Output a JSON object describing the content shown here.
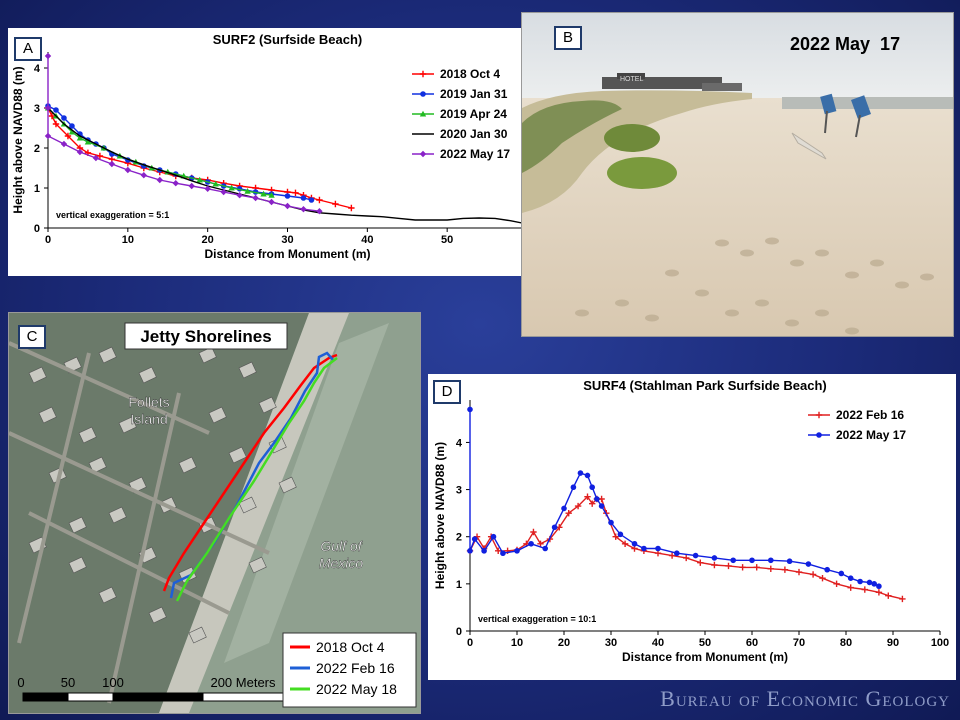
{
  "footer": "Bureau of Economic Geology",
  "panels": {
    "a": {
      "letter": "A"
    },
    "b": {
      "letter": "B",
      "date": "2022 May  17",
      "hotel_sign": "HOTEL"
    },
    "c": {
      "letter": "C",
      "title": "Jetty Shorelines",
      "place": "Follets\nIsland",
      "water": "Gulf of\nMexico",
      "legend": [
        "2018 Oct 4",
        "2022 Feb 16",
        "2022 May 18"
      ],
      "scale_labels": [
        "0",
        "50",
        "100",
        "200 Meters"
      ],
      "colors": {
        "2018 Oct 4": "#ff0000",
        "2022 Feb 16": "#1e5fd6",
        "2022 May 18": "#44dd22"
      }
    },
    "d": {
      "letter": "D"
    }
  },
  "chart_data": [
    {
      "id": "A",
      "type": "line",
      "title": "SURF2 (Surfside Beach)",
      "xlabel": "Distance from Monument (m)",
      "ylabel": "Height above NAVD88 (m)",
      "annotation": "vertical exaggeration = 5:1",
      "xlim": [
        0,
        60
      ],
      "ylim": [
        0,
        4.4
      ],
      "xticks": [
        0,
        10,
        20,
        30,
        40,
        50,
        60
      ],
      "yticks": [
        0,
        1,
        2,
        3,
        4
      ],
      "legend_position": "top-right",
      "series": [
        {
          "name": "2018 Oct 4",
          "color": "#ff0000",
          "marker": "plus",
          "points": [
            [
              0,
              3.0
            ],
            [
              0.5,
              2.8
            ],
            [
              1,
              2.6
            ],
            [
              2.5,
              2.3
            ],
            [
              4,
              2.0
            ],
            [
              5,
              1.88
            ],
            [
              6.5,
              1.8
            ],
            [
              8,
              1.72
            ],
            [
              10,
              1.62
            ],
            [
              12,
              1.5
            ],
            [
              14,
              1.4
            ],
            [
              16,
              1.3
            ],
            [
              18,
              1.25
            ],
            [
              20,
              1.2
            ],
            [
              22,
              1.12
            ],
            [
              24,
              1.05
            ],
            [
              26,
              1.0
            ],
            [
              28,
              0.95
            ],
            [
              30,
              0.9
            ],
            [
              31,
              0.88
            ],
            [
              32,
              0.82
            ],
            [
              33,
              0.75
            ],
            [
              34,
              0.7
            ],
            [
              36,
              0.6
            ],
            [
              38,
              0.5
            ]
          ]
        },
        {
          "name": "2019 Jan 31",
          "color": "#1030e0",
          "marker": "circle",
          "points": [
            [
              0,
              3.05
            ],
            [
              1,
              2.95
            ],
            [
              2,
              2.75
            ],
            [
              3,
              2.55
            ],
            [
              4,
              2.35
            ],
            [
              5,
              2.2
            ],
            [
              6,
              2.1
            ],
            [
              7,
              2.0
            ],
            [
              8,
              1.85
            ],
            [
              10,
              1.7
            ],
            [
              12,
              1.55
            ],
            [
              14,
              1.45
            ],
            [
              16,
              1.35
            ],
            [
              18,
              1.25
            ],
            [
              20,
              1.15
            ],
            [
              22,
              1.05
            ],
            [
              24,
              0.98
            ],
            [
              26,
              0.9
            ],
            [
              28,
              0.85
            ],
            [
              30,
              0.8
            ],
            [
              32,
              0.75
            ],
            [
              33,
              0.7
            ]
          ]
        },
        {
          "name": "2019 Apr 24",
          "color": "#22bb22",
          "marker": "triangle",
          "points": [
            [
              0,
              3.0
            ],
            [
              1,
              2.8
            ],
            [
              2,
              2.6
            ],
            [
              3,
              2.4
            ],
            [
              4,
              2.25
            ],
            [
              5,
              2.15
            ],
            [
              7,
              2.0
            ],
            [
              9,
              1.8
            ],
            [
              11,
              1.65
            ],
            [
              13,
              1.5
            ],
            [
              15,
              1.4
            ],
            [
              17,
              1.3
            ],
            [
              19,
              1.2
            ],
            [
              21,
              1.1
            ],
            [
              23,
              1.0
            ],
            [
              25,
              0.92
            ],
            [
              27,
              0.85
            ],
            [
              28,
              0.82
            ]
          ]
        },
        {
          "name": "2020 Jan 30",
          "color": "#000000",
          "marker": "none",
          "points": [
            [
              0,
              3.0
            ],
            [
              2,
              2.6
            ],
            [
              4,
              2.3
            ],
            [
              6,
              2.1
            ],
            [
              8,
              1.9
            ],
            [
              10,
              1.72
            ],
            [
              12,
              1.58
            ],
            [
              14,
              1.45
            ],
            [
              16,
              1.32
            ],
            [
              18,
              1.18
            ],
            [
              20,
              1.05
            ],
            [
              22,
              0.95
            ],
            [
              24,
              0.85
            ],
            [
              26,
              0.75
            ],
            [
              28,
              0.65
            ],
            [
              30,
              0.55
            ],
            [
              32,
              0.45
            ],
            [
              34,
              0.38
            ],
            [
              36,
              0.35
            ],
            [
              38,
              0.32
            ],
            [
              40,
              0.3
            ],
            [
              42,
              0.28
            ],
            [
              44,
              0.24
            ],
            [
              46,
              0.2
            ],
            [
              48,
              0.2
            ],
            [
              50,
              0.2
            ],
            [
              52,
              0.24
            ],
            [
              54,
              0.25
            ],
            [
              56,
              0.24
            ],
            [
              58,
              0.18
            ],
            [
              60,
              0.1
            ]
          ]
        },
        {
          "name": "2022 May 17",
          "color": "#8a22c8",
          "marker": "diamond",
          "points": [
            [
              0,
              4.3
            ],
            [
              0,
              3.0
            ],
            [
              0,
              2.3
            ],
            [
              2,
              2.1
            ],
            [
              4,
              1.9
            ],
            [
              6,
              1.75
            ],
            [
              8,
              1.6
            ],
            [
              10,
              1.45
            ],
            [
              12,
              1.32
            ],
            [
              14,
              1.2
            ],
            [
              16,
              1.12
            ],
            [
              18,
              1.05
            ],
            [
              20,
              0.98
            ],
            [
              22,
              0.9
            ],
            [
              24,
              0.82
            ],
            [
              26,
              0.75
            ],
            [
              28,
              0.65
            ],
            [
              30,
              0.55
            ],
            [
              32,
              0.47
            ],
            [
              34,
              0.42
            ]
          ]
        }
      ]
    },
    {
      "id": "D",
      "type": "line",
      "title": "SURF4 (Stahlman Park Surfside Beach)",
      "xlabel": "Distance from Monument (m)",
      "ylabel": "Height above NAVD88 (m)",
      "annotation": "vertical exaggeration = 10:1",
      "xlim": [
        0,
        100
      ],
      "ylim": [
        0,
        4.9
      ],
      "xticks": [
        0,
        10,
        20,
        30,
        40,
        50,
        60,
        70,
        80,
        90,
        100
      ],
      "yticks": [
        0,
        1,
        2,
        3,
        4
      ],
      "legend_position": "top-right",
      "series": [
        {
          "name": "2022 Feb 16",
          "color": "#e02020",
          "marker": "plus",
          "points": [
            [
              0,
              1.7
            ],
            [
              1.5,
              2.0
            ],
            [
              3,
              1.75
            ],
            [
              4.5,
              2.0
            ],
            [
              6,
              1.7
            ],
            [
              8,
              1.7
            ],
            [
              10,
              1.72
            ],
            [
              12,
              1.85
            ],
            [
              13.5,
              2.1
            ],
            [
              15,
              1.85
            ],
            [
              17,
              1.95
            ],
            [
              19,
              2.2
            ],
            [
              21,
              2.5
            ],
            [
              23,
              2.65
            ],
            [
              25,
              2.85
            ],
            [
              26,
              2.7
            ],
            [
              27,
              2.8
            ],
            [
              28,
              2.8
            ],
            [
              29,
              2.5
            ],
            [
              31,
              2.0
            ],
            [
              33,
              1.85
            ],
            [
              35,
              1.75
            ],
            [
              37,
              1.7
            ],
            [
              40,
              1.65
            ],
            [
              43,
              1.6
            ],
            [
              46,
              1.55
            ],
            [
              49,
              1.45
            ],
            [
              52,
              1.4
            ],
            [
              55,
              1.38
            ],
            [
              58,
              1.35
            ],
            [
              61,
              1.35
            ],
            [
              64,
              1.32
            ],
            [
              67,
              1.3
            ],
            [
              70,
              1.25
            ],
            [
              73,
              1.2
            ],
            [
              75,
              1.12
            ],
            [
              78,
              1.0
            ],
            [
              81,
              0.92
            ],
            [
              84,
              0.88
            ],
            [
              87,
              0.82
            ],
            [
              89,
              0.75
            ],
            [
              92,
              0.68
            ]
          ]
        },
        {
          "name": "2022 May 17",
          "color": "#1020e0",
          "marker": "circle",
          "points": [
            [
              0,
              4.7
            ],
            [
              0,
              1.7
            ],
            [
              1,
              1.95
            ],
            [
              3,
              1.7
            ],
            [
              5,
              2.0
            ],
            [
              7,
              1.65
            ],
            [
              10,
              1.7
            ],
            [
              13,
              1.85
            ],
            [
              16,
              1.75
            ],
            [
              18,
              2.2
            ],
            [
              20,
              2.6
            ],
            [
              22,
              3.05
            ],
            [
              23.5,
              3.35
            ],
            [
              25,
              3.3
            ],
            [
              26,
              3.05
            ],
            [
              27,
              2.8
            ],
            [
              28,
              2.65
            ],
            [
              30,
              2.3
            ],
            [
              32,
              2.05
            ],
            [
              35,
              1.85
            ],
            [
              37,
              1.75
            ],
            [
              40,
              1.75
            ],
            [
              44,
              1.65
            ],
            [
              48,
              1.6
            ],
            [
              52,
              1.55
            ],
            [
              56,
              1.5
            ],
            [
              60,
              1.5
            ],
            [
              64,
              1.5
            ],
            [
              68,
              1.48
            ],
            [
              72,
              1.42
            ],
            [
              76,
              1.3
            ],
            [
              79,
              1.22
            ],
            [
              81,
              1.12
            ],
            [
              83,
              1.05
            ],
            [
              85,
              1.03
            ],
            [
              86,
              1.0
            ],
            [
              87,
              0.95
            ]
          ]
        }
      ]
    }
  ]
}
